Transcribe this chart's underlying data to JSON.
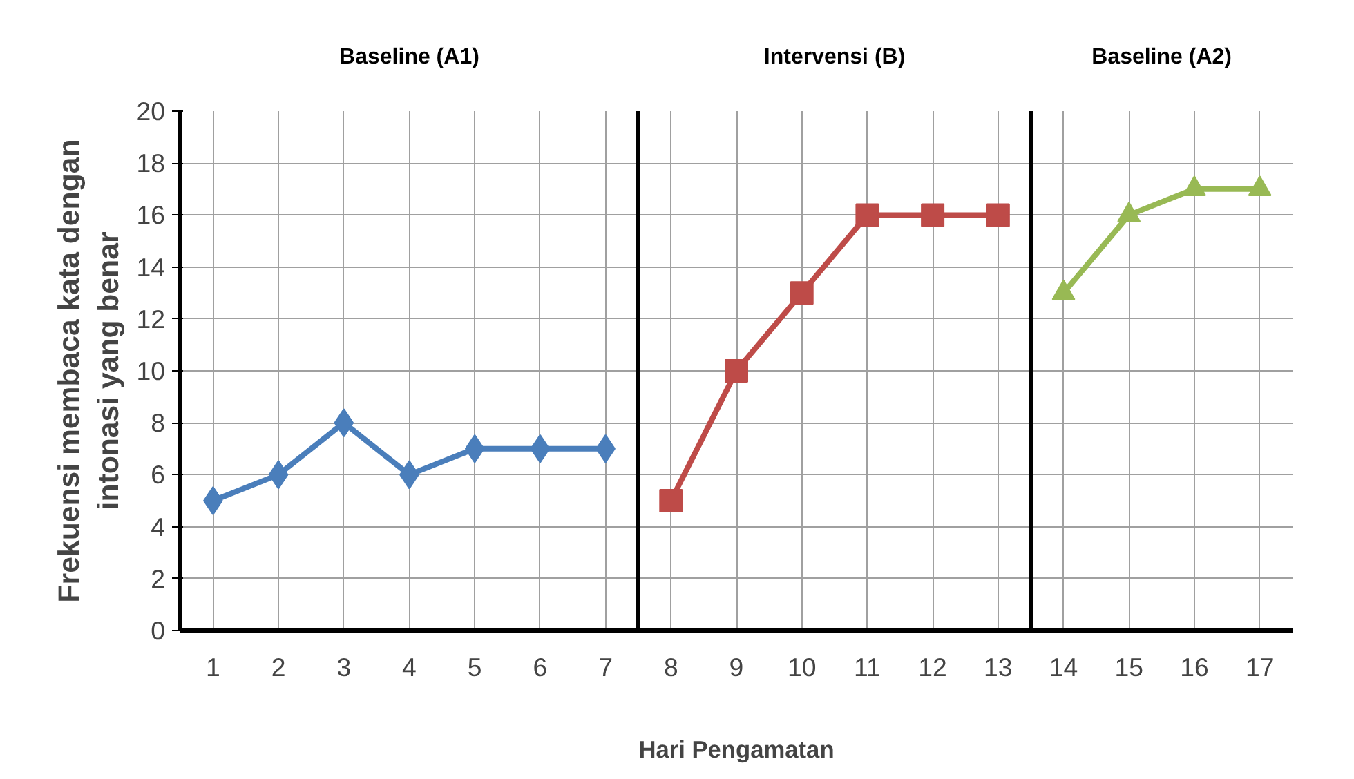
{
  "chart_data": {
    "type": "line",
    "xlabel": "Hari Pengamatan",
    "ylabel": "Frekuensi membaca kata dengan\nintonasi yang benar",
    "x": [
      1,
      2,
      3,
      4,
      5,
      6,
      7,
      8,
      9,
      10,
      11,
      12,
      13,
      14,
      15,
      16,
      17
    ],
    "xlim": [
      0.5,
      17.5
    ],
    "xticks": [
      1,
      2,
      3,
      4,
      5,
      6,
      7,
      8,
      9,
      10,
      11,
      12,
      13,
      14,
      15,
      16,
      17
    ],
    "ylim": [
      0,
      20
    ],
    "yticks": [
      0,
      2,
      4,
      6,
      8,
      10,
      12,
      14,
      16,
      18,
      20
    ],
    "grid": true,
    "series": [
      {
        "color": "#4a7ebb",
        "marker": "diamond",
        "values": [
          5,
          6,
          8,
          6,
          7,
          7,
          7,
          null,
          null,
          null,
          null,
          null,
          null,
          null,
          null,
          null,
          null
        ]
      },
      {
        "color": "#be4b48",
        "marker": "square",
        "values": [
          null,
          null,
          null,
          null,
          null,
          null,
          null,
          5,
          10,
          13,
          16,
          16,
          16,
          null,
          null,
          null,
          null
        ]
      },
      {
        "color": "#98b954",
        "marker": "triangle",
        "values": [
          null,
          null,
          null,
          null,
          null,
          null,
          null,
          null,
          null,
          null,
          null,
          null,
          null,
          13,
          16,
          17,
          17
        ]
      }
    ],
    "ref_lines": [
      {
        "axis": "x",
        "value": 7.5,
        "color": "#000000"
      },
      {
        "axis": "x",
        "value": 13.5,
        "color": "#000000"
      }
    ],
    "annotations": [
      "Baseline (A1)",
      "Intervensi (B)",
      "Baseline (A2)"
    ]
  }
}
